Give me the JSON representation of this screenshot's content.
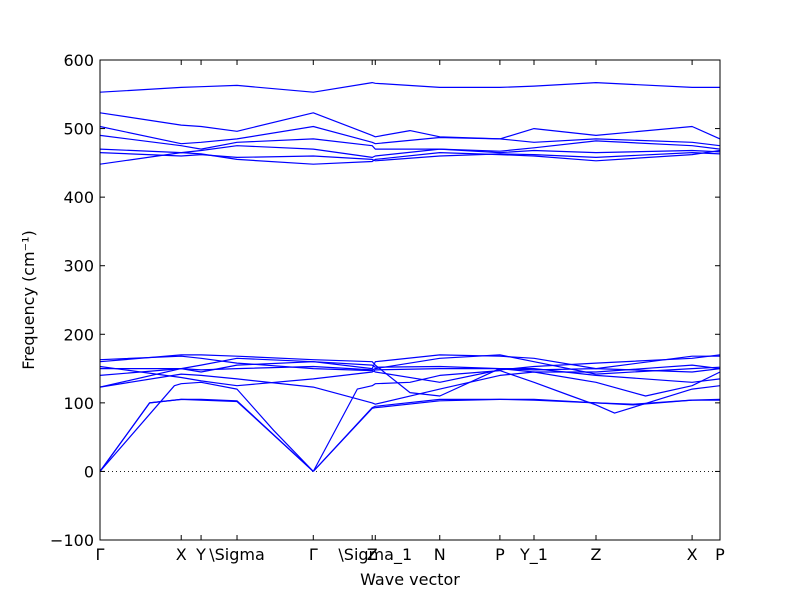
{
  "chart_data": {
    "type": "line",
    "xlabel": "Wave vector",
    "ylabel": "Frequency (cm⁻¹)",
    "ylim": [
      -100,
      600
    ],
    "x_range": [
      0,
      10
    ],
    "grid": false,
    "legend": "none",
    "line_color": "#0000ff",
    "zero_line": {
      "y": 0,
      "style": "dotted"
    },
    "y_ticks": [
      -100,
      0,
      100,
      200,
      300,
      400,
      500,
      600
    ],
    "x_ticks": [
      {
        "label": "Γ",
        "x": 0
      },
      {
        "label": "X",
        "x": 1.31
      },
      {
        "label": "Y",
        "x": 1.63
      },
      {
        "label": "\\Sigma",
        "x": 2.21
      },
      {
        "label": "Γ",
        "x": 3.44
      },
      {
        "label": "Z",
        "x": 4.39
      },
      {
        "label": "\\Sigma_1",
        "x": 4.44
      },
      {
        "label": "N",
        "x": 5.48
      },
      {
        "label": "P",
        "x": 6.45
      },
      {
        "label": "Y_1",
        "x": 7.0
      },
      {
        "label": "Z",
        "x": 8.0
      },
      {
        "label": "X",
        "x": 9.55
      },
      {
        "label": "P",
        "x": 10.0
      }
    ],
    "series": [
      {
        "x": [
          0,
          0.8,
          1.31,
          1.63,
          2.21,
          3.44
        ],
        "values": [
          0,
          100,
          105,
          104,
          102,
          0
        ]
      },
      {
        "x": [
          0,
          0.8,
          1.31,
          1.63,
          2.21,
          3.44
        ],
        "values": [
          0,
          100,
          105,
          105,
          103,
          0
        ]
      },
      {
        "x": [
          0,
          1.2,
          1.31,
          1.63,
          2.21,
          2.8,
          3.44
        ],
        "values": [
          0,
          125,
          128,
          130,
          120,
          60,
          0
        ]
      },
      {
        "x": [
          3.44,
          4.39,
          4.44,
          5.48,
          6.45,
          7.0,
          8.0,
          8.6,
          9.55,
          10.0
        ],
        "values": [
          0,
          92,
          93,
          103,
          105,
          105,
          100,
          97,
          104,
          105
        ]
      },
      {
        "x": [
          3.44,
          4.39,
          4.44,
          5.48,
          6.45,
          7.0,
          8.0,
          8.6,
          9.55,
          10.0
        ],
        "values": [
          0,
          93,
          95,
          105,
          105,
          104,
          100,
          98,
          104,
          104
        ]
      },
      {
        "x": [
          3.44,
          4.15,
          4.39,
          4.44,
          5.0,
          5.48,
          6.45,
          7.0,
          7.6,
          8.0,
          8.3,
          9.55,
          10.0
        ],
        "values": [
          0,
          120,
          125,
          128,
          130,
          140,
          147,
          130,
          110,
          97,
          85,
          120,
          125
        ]
      },
      {
        "x": [
          0,
          1.31,
          1.63,
          2.21,
          3.44,
          4.39,
          4.44,
          5.48,
          6.45,
          7.0,
          8.0,
          9.55,
          10.0
        ],
        "values": [
          123,
          150,
          145,
          155,
          160,
          155,
          152,
          153,
          150,
          150,
          140,
          130,
          135
        ]
      },
      {
        "x": [
          0,
          1.31,
          1.63,
          2.21,
          3.44,
          4.39,
          4.44,
          5.48,
          6.45,
          7.0,
          8.0,
          8.8,
          9.55,
          10.0
        ],
        "values": [
          123,
          142,
          140,
          135,
          123,
          100,
          98,
          120,
          140,
          145,
          130,
          110,
          125,
          145
        ]
      },
      {
        "x": [
          0,
          1.31,
          1.63,
          2.21,
          3.44,
          4.39,
          4.44,
          5.0,
          5.48,
          6.45,
          7.0,
          8.0,
          9.55,
          10.0
        ],
        "values": [
          160,
          170,
          170,
          168,
          163,
          160,
          155,
          115,
          110,
          150,
          148,
          150,
          145,
          150
        ]
      },
      {
        "x": [
          0,
          1.31,
          1.63,
          2.21,
          3.44,
          4.39,
          4.44,
          5.48,
          6.45,
          7.0,
          8.0,
          9.55,
          10.0
        ],
        "values": [
          163,
          168,
          165,
          158,
          150,
          147,
          145,
          130,
          148,
          153,
          158,
          165,
          170
        ]
      },
      {
        "x": [
          0,
          1.31,
          1.63,
          2.21,
          3.44,
          4.39,
          4.44,
          5.48,
          6.45,
          7.0,
          8.0,
          9.55,
          10.0
        ],
        "values": [
          150,
          150,
          148,
          150,
          153,
          148,
          150,
          165,
          170,
          160,
          142,
          150,
          152
        ]
      },
      {
        "x": [
          0,
          1.31,
          1.63,
          2.21,
          3.44,
          4.39,
          4.44,
          5.48,
          6.45,
          7.0,
          8.0,
          9.55,
          10.0
        ],
        "values": [
          140,
          150,
          155,
          165,
          160,
          150,
          160,
          170,
          168,
          165,
          150,
          168,
          168
        ]
      },
      {
        "x": [
          0,
          1.31,
          1.63,
          2.21,
          3.44,
          4.39,
          4.44,
          5.48,
          6.45,
          7.0,
          8.0,
          9.55,
          10.0
        ],
        "values": [
          153,
          137,
          132,
          125,
          135,
          145,
          148,
          150,
          150,
          145,
          145,
          155,
          150
        ]
      },
      {
        "x": [
          0,
          1.31,
          1.63,
          2.21,
          3.44,
          4.39,
          4.44,
          5.48,
          6.45,
          7.0,
          8.0,
          9.55,
          10.0
        ],
        "values": [
          553,
          560,
          561,
          563,
          553,
          567,
          566,
          560,
          560,
          562,
          567,
          560,
          560
        ]
      },
      {
        "x": [
          0,
          1.31,
          1.63,
          2.21,
          3.44,
          4.39,
          4.44,
          5.0,
          5.48,
          6.45,
          7.0,
          8.0,
          9.55,
          10.0
        ],
        "values": [
          523,
          505,
          503,
          496,
          523,
          490,
          488,
          497,
          488,
          485,
          500,
          490,
          503,
          485
        ]
      },
      {
        "x": [
          0,
          1.31,
          1.63,
          2.21,
          3.44,
          4.39,
          4.44,
          5.48,
          6.45,
          7.0,
          8.0,
          9.55,
          10.0
        ],
        "values": [
          503,
          478,
          480,
          485,
          503,
          480,
          478,
          487,
          485,
          480,
          485,
          480,
          475
        ]
      },
      {
        "x": [
          0,
          1.31,
          1.63,
          2.21,
          3.44,
          4.39,
          4.44,
          5.48,
          6.45,
          7.0,
          8.0,
          9.55,
          10.0
        ],
        "values": [
          490,
          475,
          470,
          480,
          485,
          475,
          470,
          470,
          467,
          472,
          482,
          475,
          470
        ]
      },
      {
        "x": [
          0,
          1.31,
          1.63,
          2.21,
          3.44,
          4.39,
          4.44,
          5.48,
          6.45,
          7.0,
          8.0,
          9.55,
          10.0
        ],
        "values": [
          470,
          465,
          468,
          475,
          470,
          458,
          460,
          470,
          465,
          468,
          465,
          468,
          466
        ]
      },
      {
        "x": [
          0,
          1.31,
          1.63,
          2.21,
          3.44,
          4.39,
          4.44,
          5.48,
          6.45,
          7.0,
          8.0,
          9.55,
          10.0
        ],
        "values": [
          465,
          460,
          462,
          458,
          460,
          455,
          453,
          460,
          463,
          462,
          458,
          465,
          463
        ]
      },
      {
        "x": [
          0,
          1.31,
          1.63,
          2.21,
          3.44,
          4.39,
          4.44,
          5.48,
          6.45,
          7.0,
          8.0,
          9.55,
          10.0
        ],
        "values": [
          448,
          465,
          463,
          455,
          448,
          452,
          455,
          465,
          462,
          460,
          453,
          462,
          468
        ]
      }
    ]
  }
}
